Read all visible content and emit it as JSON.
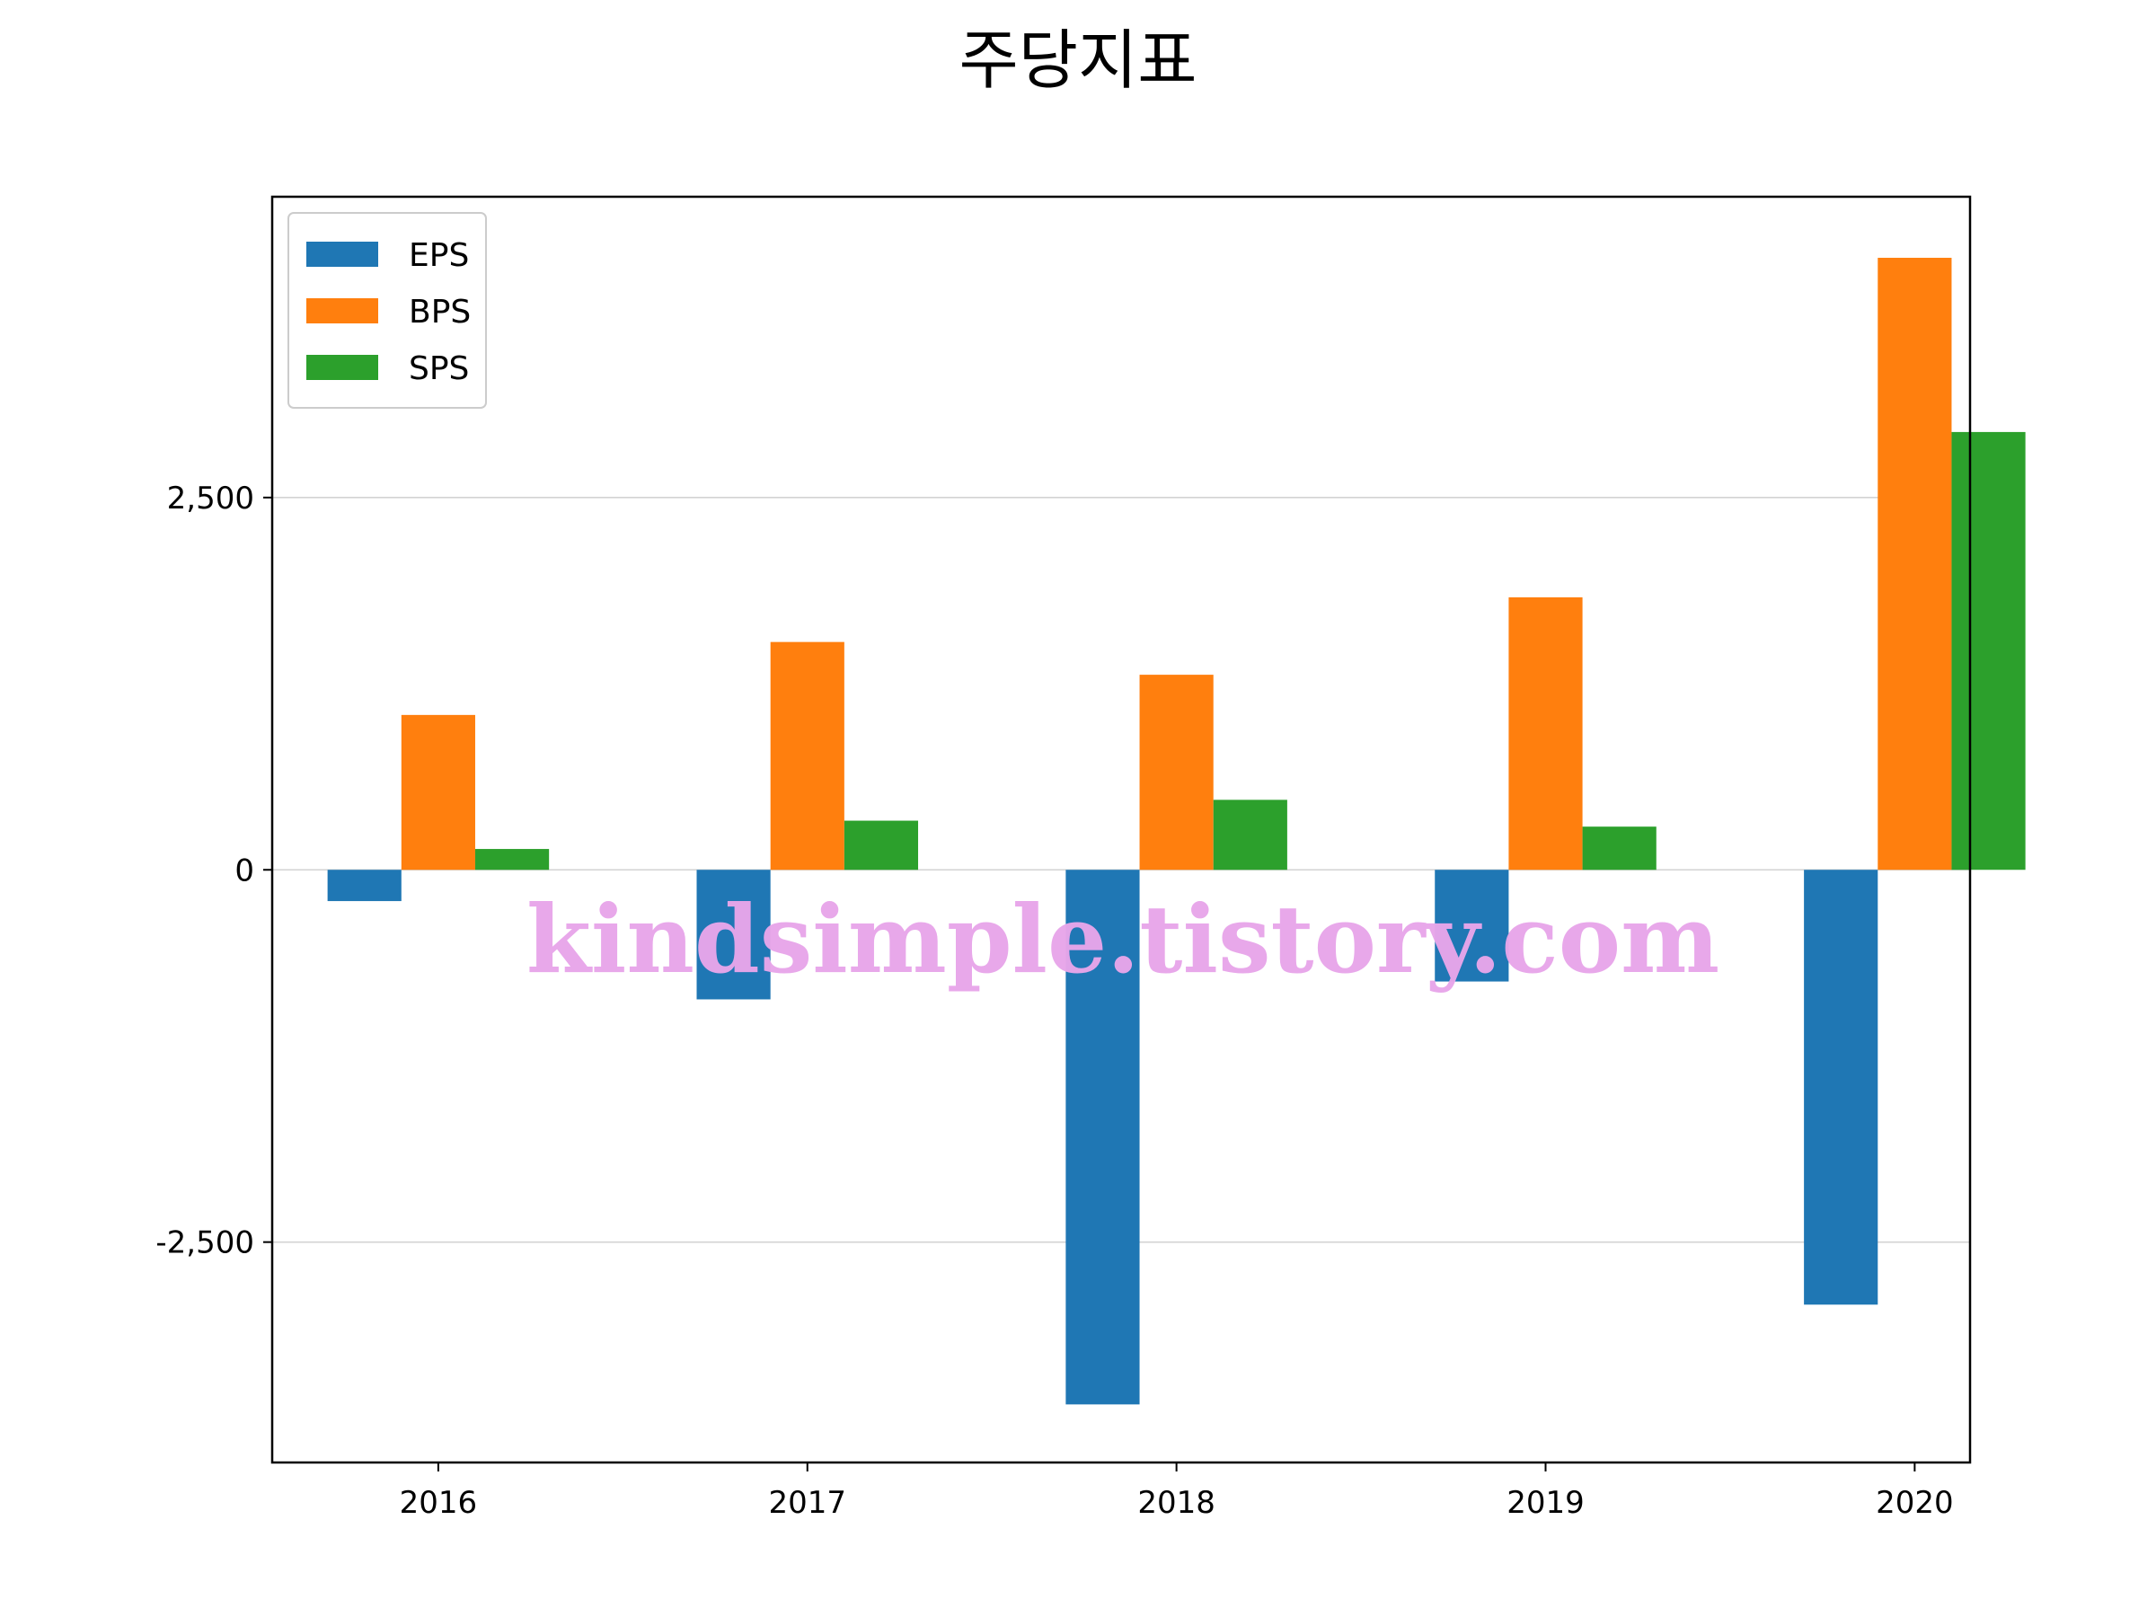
{
  "chart_data": {
    "type": "bar",
    "title": "주당지표",
    "xlabel": "",
    "ylabel": "",
    "categories": [
      "2016",
      "2017",
      "2018",
      "2019",
      "2020"
    ],
    "series": [
      {
        "name": "EPS",
        "color": "#1f77b4",
        "values": [
          -210,
          -870,
          -3590,
          -750,
          -2920
        ]
      },
      {
        "name": "BPS",
        "color": "#ff7f0e",
        "values": [
          1040,
          1530,
          1310,
          1830,
          4110
        ]
      },
      {
        "name": "SPS",
        "color": "#2ca02c",
        "values": [
          140,
          330,
          470,
          290,
          2940
        ]
      }
    ],
    "ylim": [
      -3980,
      4520
    ],
    "yticks": [
      -2500,
      0,
      2500
    ],
    "ytick_labels": [
      "-2,500",
      "0",
      "2,500"
    ],
    "grid": "y",
    "legend_position": "top-left"
  },
  "watermark": "kindsimple.tistory.com"
}
